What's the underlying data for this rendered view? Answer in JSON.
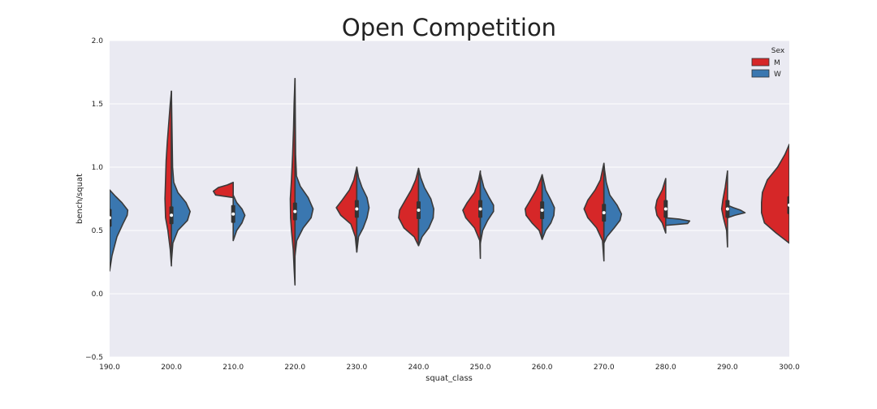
{
  "chart_data": {
    "type": "violin",
    "title": "Open Competition",
    "xlabel": "squat_class",
    "ylabel": "bench/squat",
    "categories": [
      "190.0",
      "200.0",
      "210.0",
      "220.0",
      "230.0",
      "240.0",
      "250.0",
      "260.0",
      "270.0",
      "280.0",
      "290.0",
      "300.0"
    ],
    "y_ticks": [
      -0.5,
      0.0,
      0.5,
      1.0,
      1.5,
      2.0
    ],
    "y_tick_labels": [
      "−0.5",
      "0.0",
      "0.5",
      "1.0",
      "1.5",
      "2.0"
    ],
    "ylim": [
      -0.5,
      2.0
    ],
    "grid": true,
    "legend": {
      "title": "Sex",
      "placement": "top-right"
    },
    "series": [
      {
        "name": "M",
        "color": "#d62728"
      },
      {
        "name": "W",
        "color": "#3a77b0"
      }
    ],
    "colors": {
      "M": "#d62728",
      "W": "#3a77b0",
      "background": "#eaeaf2"
    },
    "violins": [
      {
        "category": "190.0",
        "median": 0.6,
        "M": null,
        "W": {
          "min": 0.18,
          "max": 0.82,
          "profile": [
            [
              0.18,
              0
            ],
            [
              0.3,
              0.08
            ],
            [
              0.45,
              0.25
            ],
            [
              0.55,
              0.45
            ],
            [
              0.62,
              0.6
            ],
            [
              0.66,
              0.62
            ],
            [
              0.72,
              0.42
            ],
            [
              0.77,
              0.2
            ],
            [
              0.82,
              0
            ]
          ]
        }
      },
      {
        "category": "200.0",
        "median": 0.62,
        "M": {
          "min": 0.22,
          "max": 1.6,
          "profile": [
            [
              0.22,
              0
            ],
            [
              0.35,
              0.04
            ],
            [
              0.5,
              0.12
            ],
            [
              0.6,
              0.2
            ],
            [
              0.75,
              0.22
            ],
            [
              0.9,
              0.2
            ],
            [
              1.05,
              0.18
            ],
            [
              1.2,
              0.14
            ],
            [
              1.35,
              0.09
            ],
            [
              1.5,
              0.04
            ],
            [
              1.6,
              0
            ]
          ]
        },
        "W": {
          "min": 0.25,
          "max": 1.6,
          "profile": [
            [
              0.25,
              0
            ],
            [
              0.4,
              0.05
            ],
            [
              0.5,
              0.22
            ],
            [
              0.58,
              0.55
            ],
            [
              0.65,
              0.64
            ],
            [
              0.72,
              0.5
            ],
            [
              0.8,
              0.22
            ],
            [
              0.88,
              0.08
            ],
            [
              1.0,
              0.04
            ],
            [
              1.3,
              0.02
            ],
            [
              1.6,
              0
            ]
          ]
        }
      },
      {
        "category": "210.0",
        "median": 0.63,
        "M": {
          "min": 0.76,
          "max": 0.88,
          "profile": [
            [
              0.76,
              0
            ],
            [
              0.78,
              0.6
            ],
            [
              0.81,
              0.68
            ],
            [
              0.84,
              0.5
            ],
            [
              0.86,
              0.2
            ],
            [
              0.88,
              0
            ]
          ]
        },
        "W": {
          "min": 0.42,
          "max": 0.78,
          "profile": [
            [
              0.42,
              0
            ],
            [
              0.5,
              0.12
            ],
            [
              0.56,
              0.3
            ],
            [
              0.62,
              0.4
            ],
            [
              0.67,
              0.3
            ],
            [
              0.72,
              0.12
            ],
            [
              0.78,
              0
            ]
          ]
        }
      },
      {
        "category": "220.0",
        "median": 0.65,
        "M": {
          "min": 0.07,
          "max": 1.7,
          "profile": [
            [
              0.07,
              0
            ],
            [
              0.2,
              0.03
            ],
            [
              0.35,
              0.06
            ],
            [
              0.5,
              0.12
            ],
            [
              0.6,
              0.15
            ],
            [
              0.75,
              0.16
            ],
            [
              0.9,
              0.12
            ],
            [
              1.1,
              0.08
            ],
            [
              1.3,
              0.05
            ],
            [
              1.5,
              0.03
            ],
            [
              1.7,
              0
            ]
          ]
        },
        "W": {
          "min": 0.3,
          "max": 1.7,
          "profile": [
            [
              0.3,
              0
            ],
            [
              0.42,
              0.06
            ],
            [
              0.52,
              0.28
            ],
            [
              0.6,
              0.55
            ],
            [
              0.67,
              0.62
            ],
            [
              0.76,
              0.45
            ],
            [
              0.85,
              0.18
            ],
            [
              0.93,
              0.05
            ],
            [
              1.1,
              0.02
            ],
            [
              1.4,
              0.01
            ],
            [
              1.7,
              0
            ]
          ]
        }
      },
      {
        "category": "230.0",
        "median": 0.67,
        "M": {
          "min": 0.33,
          "max": 1.0,
          "profile": [
            [
              0.33,
              0
            ],
            [
              0.45,
              0.05
            ],
            [
              0.55,
              0.2
            ],
            [
              0.62,
              0.55
            ],
            [
              0.68,
              0.7
            ],
            [
              0.74,
              0.5
            ],
            [
              0.82,
              0.25
            ],
            [
              0.9,
              0.1
            ],
            [
              1.0,
              0
            ]
          ]
        },
        "W": {
          "min": 0.33,
          "max": 1.0,
          "profile": [
            [
              0.33,
              0
            ],
            [
              0.45,
              0.06
            ],
            [
              0.52,
              0.22
            ],
            [
              0.6,
              0.35
            ],
            [
              0.68,
              0.42
            ],
            [
              0.76,
              0.35
            ],
            [
              0.84,
              0.18
            ],
            [
              0.92,
              0.06
            ],
            [
              1.0,
              0
            ]
          ]
        }
      },
      {
        "category": "240.0",
        "median": 0.66,
        "M": {
          "min": 0.38,
          "max": 0.99,
          "profile": [
            [
              0.38,
              0
            ],
            [
              0.45,
              0.15
            ],
            [
              0.52,
              0.5
            ],
            [
              0.6,
              0.68
            ],
            [
              0.66,
              0.65
            ],
            [
              0.74,
              0.45
            ],
            [
              0.82,
              0.25
            ],
            [
              0.9,
              0.1
            ],
            [
              0.99,
              0
            ]
          ]
        },
        "W": {
          "min": 0.38,
          "max": 0.99,
          "profile": [
            [
              0.38,
              0
            ],
            [
              0.45,
              0.12
            ],
            [
              0.52,
              0.35
            ],
            [
              0.6,
              0.5
            ],
            [
              0.67,
              0.52
            ],
            [
              0.75,
              0.42
            ],
            [
              0.84,
              0.2
            ],
            [
              0.92,
              0.07
            ],
            [
              0.99,
              0
            ]
          ]
        }
      },
      {
        "category": "250.0",
        "median": 0.67,
        "M": {
          "min": 0.28,
          "max": 0.97,
          "profile": [
            [
              0.28,
              0
            ],
            [
              0.42,
              0.02
            ],
            [
              0.52,
              0.2
            ],
            [
              0.6,
              0.5
            ],
            [
              0.66,
              0.6
            ],
            [
              0.72,
              0.45
            ],
            [
              0.8,
              0.2
            ],
            [
              0.9,
              0.06
            ],
            [
              0.97,
              0
            ]
          ]
        },
        "W": {
          "min": 0.4,
          "max": 0.95,
          "profile": [
            [
              0.4,
              0
            ],
            [
              0.5,
              0.08
            ],
            [
              0.58,
              0.25
            ],
            [
              0.65,
              0.45
            ],
            [
              0.7,
              0.45
            ],
            [
              0.76,
              0.3
            ],
            [
              0.84,
              0.12
            ],
            [
              0.95,
              0
            ]
          ]
        }
      },
      {
        "category": "260.0",
        "median": 0.66,
        "M": {
          "min": 0.43,
          "max": 0.94,
          "profile": [
            [
              0.43,
              0
            ],
            [
              0.5,
              0.1
            ],
            [
              0.56,
              0.35
            ],
            [
              0.62,
              0.55
            ],
            [
              0.67,
              0.58
            ],
            [
              0.74,
              0.4
            ],
            [
              0.82,
              0.2
            ],
            [
              0.9,
              0.06
            ],
            [
              0.94,
              0
            ]
          ]
        },
        "W": {
          "min": 0.43,
          "max": 0.94,
          "profile": [
            [
              0.43,
              0
            ],
            [
              0.5,
              0.12
            ],
            [
              0.56,
              0.3
            ],
            [
              0.62,
              0.4
            ],
            [
              0.68,
              0.42
            ],
            [
              0.74,
              0.3
            ],
            [
              0.82,
              0.12
            ],
            [
              0.9,
              0.04
            ],
            [
              0.94,
              0
            ]
          ]
        }
      },
      {
        "category": "270.0",
        "median": 0.64,
        "M": {
          "min": 0.26,
          "max": 1.03,
          "profile": [
            [
              0.26,
              0
            ],
            [
              0.42,
              0.05
            ],
            [
              0.52,
              0.25
            ],
            [
              0.6,
              0.55
            ],
            [
              0.67,
              0.68
            ],
            [
              0.74,
              0.55
            ],
            [
              0.82,
              0.3
            ],
            [
              0.9,
              0.12
            ],
            [
              1.0,
              0.03
            ],
            [
              1.03,
              0
            ]
          ]
        },
        "W": {
          "min": 0.4,
          "max": 1.03,
          "profile": [
            [
              0.4,
              0
            ],
            [
              0.45,
              0.1
            ],
            [
              0.52,
              0.35
            ],
            [
              0.58,
              0.55
            ],
            [
              0.63,
              0.6
            ],
            [
              0.7,
              0.45
            ],
            [
              0.78,
              0.2
            ],
            [
              0.88,
              0.08
            ],
            [
              0.98,
              0.02
            ],
            [
              1.03,
              0
            ]
          ]
        }
      },
      {
        "category": "280.0",
        "median": 0.67,
        "M": {
          "min": 0.48,
          "max": 0.91,
          "profile": [
            [
              0.48,
              0
            ],
            [
              0.56,
              0.12
            ],
            [
              0.62,
              0.3
            ],
            [
              0.68,
              0.35
            ],
            [
              0.74,
              0.3
            ],
            [
              0.82,
              0.12
            ],
            [
              0.91,
              0
            ]
          ]
        },
        "W": {
          "min": 0.54,
          "max": 0.6,
          "profile": [
            [
              0.54,
              0
            ],
            [
              0.555,
              0.75
            ],
            [
              0.575,
              0.82
            ],
            [
              0.59,
              0.45
            ],
            [
              0.6,
              0
            ]
          ]
        }
      },
      {
        "category": "290.0",
        "median": 0.67,
        "M": {
          "min": 0.37,
          "max": 0.97,
          "profile": [
            [
              0.37,
              0
            ],
            [
              0.5,
              0.03
            ],
            [
              0.6,
              0.14
            ],
            [
              0.67,
              0.2
            ],
            [
              0.74,
              0.16
            ],
            [
              0.84,
              0.08
            ],
            [
              0.97,
              0
            ]
          ]
        },
        "W": {
          "min": 0.6,
          "max": 0.7,
          "profile": [
            [
              0.6,
              0
            ],
            [
              0.62,
              0.25
            ],
            [
              0.64,
              0.6
            ],
            [
              0.66,
              0.45
            ],
            [
              0.68,
              0.2
            ],
            [
              0.7,
              0
            ]
          ]
        }
      },
      {
        "category": "300.0",
        "median": 0.7,
        "M": {
          "min": 0.4,
          "max": 1.18,
          "profile": [
            [
              0.4,
              0
            ],
            [
              0.48,
              0.45
            ],
            [
              0.56,
              0.85
            ],
            [
              0.64,
              0.95
            ],
            [
              0.72,
              0.95
            ],
            [
              0.8,
              0.92
            ],
            [
              0.9,
              0.75
            ],
            [
              1.0,
              0.4
            ],
            [
              1.1,
              0.15
            ],
            [
              1.18,
              0
            ]
          ]
        },
        "W": null
      }
    ]
  }
}
